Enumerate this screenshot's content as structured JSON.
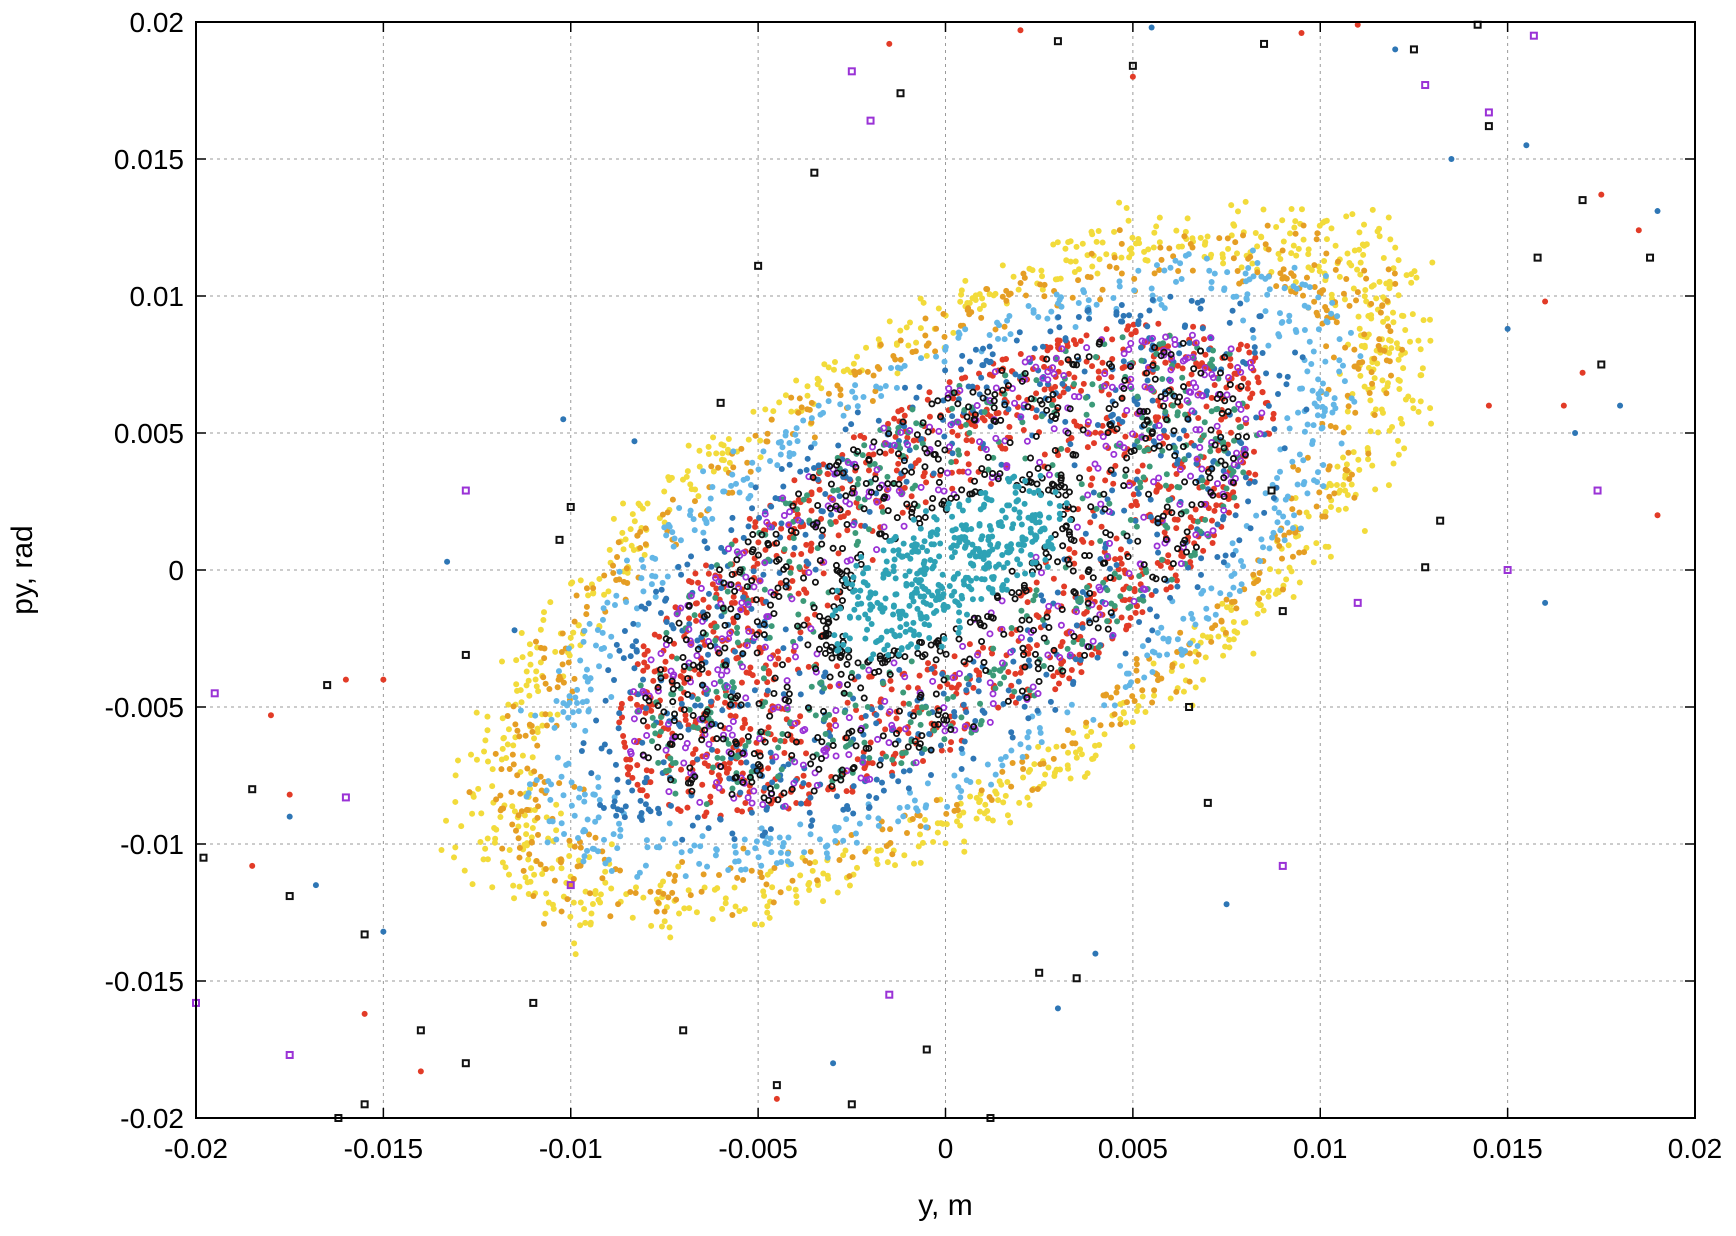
{
  "chart_data": {
    "type": "scatter",
    "title": "",
    "xlabel": "y, m",
    "ylabel": "py, rad",
    "xlim": [
      -0.02,
      0.02
    ],
    "ylim": [
      -0.02,
      0.02
    ],
    "grid": true,
    "legend": "none",
    "x_ticks": [
      "-0.02",
      "-0.015",
      "-0.01",
      "-0.005",
      "0",
      "0.005",
      "0.01",
      "0.015",
      "0.02"
    ],
    "y_ticks": [
      "-0.02",
      "-0.015",
      "-0.01",
      "-0.005",
      "0",
      "0.005",
      "0.01",
      "0.015",
      "0.02"
    ],
    "tilt_slope": 1.05,
    "series": [
      {
        "color": "#f2db3b",
        "marker": "dot",
        "rings": [
          [
            0.0165,
            0.0075
          ],
          [
            0.0155,
            0.0072
          ],
          [
            0.0148,
            0.0069
          ]
        ],
        "count": 900,
        "core": []
      },
      {
        "color": "#e59e24",
        "marker": "dot",
        "rings": [
          [
            0.0152,
            0.007
          ],
          [
            0.014,
            0.0066
          ]
        ],
        "count": 520,
        "core": []
      },
      {
        "color": "#63b6e6",
        "marker": "dot",
        "rings": [
          [
            0.0137,
            0.0064
          ],
          [
            0.0128,
            0.0061
          ]
        ],
        "count": 560,
        "core": []
      },
      {
        "color": "#e23b27",
        "marker": "dot",
        "rings": [],
        "count": 0,
        "core": [
          0.0115,
          0.0052,
          1100
        ]
      },
      {
        "color": "#2e76b5",
        "marker": "dot",
        "rings": [],
        "count": 0,
        "core": [
          0.0128,
          0.0058,
          650
        ]
      },
      {
        "color": "#3c9a78",
        "marker": "dot",
        "rings": [],
        "count": 0,
        "core": [
          0.011,
          0.005,
          450
        ]
      },
      {
        "color": "#9a32d6",
        "marker": "ring",
        "rings": [],
        "count": 0,
        "core": [
          0.0112,
          0.005,
          420
        ]
      },
      {
        "color": "#111111",
        "marker": "ring",
        "rings": [
          [
            0.0042,
            0.002
          ]
        ],
        "count": 160,
        "core": [
          0.0108,
          0.0049,
          520
        ]
      },
      {
        "color": "#2ea2b5",
        "marker": "dot",
        "rings": [
          [
            0.0038,
            0.0017
          ],
          [
            0.003,
            0.0013
          ],
          [
            0.0022,
            0.001
          ],
          [
            0.0013,
            0.0006
          ]
        ],
        "count": 420,
        "core": []
      }
    ],
    "outliers": [
      {
        "color": "#111111",
        "marker": "square",
        "points": [
          [
            -0.0198,
            -0.0105
          ],
          [
            -0.0175,
            -0.0119
          ],
          [
            -0.0155,
            -0.0133
          ],
          [
            -0.0165,
            -0.0042
          ],
          [
            -0.014,
            -0.0168
          ],
          [
            -0.0185,
            -0.008
          ],
          [
            -0.0128,
            -0.0031
          ],
          [
            -0.01,
            0.0023
          ],
          [
            -0.0103,
            0.0011
          ],
          [
            -0.005,
            0.0111
          ],
          [
            -0.0035,
            0.0145
          ],
          [
            -0.006,
            0.0061
          ],
          [
            -0.0012,
            0.0174
          ],
          [
            0.003,
            0.0193
          ],
          [
            0.005,
            0.0184
          ],
          [
            0.0085,
            0.0192
          ],
          [
            0.0125,
            0.019
          ],
          [
            0.0142,
            0.0199
          ],
          [
            0.0145,
            0.0162
          ],
          [
            0.0158,
            0.0114
          ],
          [
            0.0175,
            0.0075
          ],
          [
            0.0188,
            0.0114
          ],
          [
            0.017,
            0.0135
          ],
          [
            0.0128,
            0.0001
          ],
          [
            0.0132,
            0.0018
          ],
          [
            0.009,
            -0.0015
          ],
          [
            0.0087,
            0.0029
          ],
          [
            0.0065,
            -0.005
          ],
          [
            0.007,
            -0.0085
          ],
          [
            0.0035,
            -0.0149
          ],
          [
            0.0025,
            -0.0147
          ],
          [
            0.0012,
            -0.02
          ],
          [
            -0.0005,
            -0.0175
          ],
          [
            -0.0025,
            -0.0195
          ],
          [
            -0.0045,
            -0.0188
          ],
          [
            -0.007,
            -0.0168
          ],
          [
            -0.011,
            -0.0158
          ],
          [
            -0.0155,
            -0.0195
          ],
          [
            -0.0162,
            -0.02
          ],
          [
            -0.0128,
            -0.018
          ]
        ]
      },
      {
        "color": "#9a32d6",
        "marker": "square",
        "points": [
          [
            -0.0195,
            -0.0045
          ],
          [
            -0.02,
            -0.0158
          ],
          [
            -0.0175,
            -0.0177
          ],
          [
            -0.016,
            -0.0083
          ],
          [
            -0.0128,
            0.0029
          ],
          [
            -0.0025,
            0.0182
          ],
          [
            -0.002,
            0.0164
          ],
          [
            0.0128,
            0.0177
          ],
          [
            0.0145,
            0.0167
          ],
          [
            0.0157,
            0.0195
          ],
          [
            0.0174,
            0.0029
          ],
          [
            0.015,
            0.0
          ],
          [
            0.011,
            -0.0012
          ],
          [
            0.009,
            -0.0108
          ],
          [
            -0.01,
            -0.0115
          ],
          [
            -0.0015,
            -0.0155
          ]
        ]
      },
      {
        "color": "#e23b27",
        "marker": "dot",
        "points": [
          [
            -0.0185,
            -0.0108
          ],
          [
            -0.0175,
            -0.0082
          ],
          [
            -0.016,
            -0.004
          ],
          [
            -0.0155,
            -0.0162
          ],
          [
            -0.015,
            -0.004
          ],
          [
            -0.014,
            -0.0183
          ],
          [
            0.0165,
            0.006
          ],
          [
            0.0175,
            0.0137
          ],
          [
            0.0185,
            0.0124
          ],
          [
            0.016,
            0.0098
          ],
          [
            0.017,
            0.0072
          ],
          [
            0.0145,
            0.006
          ],
          [
            0.0095,
            0.0196
          ],
          [
            0.011,
            0.0199
          ],
          [
            0.002,
            0.0197
          ],
          [
            -0.0015,
            0.0192
          ],
          [
            0.005,
            0.018
          ],
          [
            -0.018,
            -0.0053
          ],
          [
            -0.0045,
            -0.0193
          ],
          [
            0.019,
            0.002
          ]
        ]
      },
      {
        "color": "#2e76b5",
        "marker": "dot",
        "points": [
          [
            -0.0175,
            -0.009
          ],
          [
            -0.0168,
            -0.0115
          ],
          [
            -0.015,
            -0.0132
          ],
          [
            -0.0115,
            -0.0022
          ],
          [
            -0.0102,
            0.0055
          ],
          [
            -0.0083,
            0.0047
          ],
          [
            0.018,
            0.006
          ],
          [
            0.019,
            0.0131
          ],
          [
            0.0155,
            0.0155
          ],
          [
            0.015,
            0.0088
          ],
          [
            0.0168,
            0.005
          ],
          [
            0.016,
            -0.0012
          ],
          [
            0.0135,
            0.015
          ],
          [
            0.012,
            0.019
          ],
          [
            0.0055,
            0.0198
          ],
          [
            0.0075,
            -0.0122
          ],
          [
            0.004,
            -0.014
          ],
          [
            -0.003,
            -0.018
          ],
          [
            0.003,
            -0.016
          ],
          [
            -0.0133,
            0.0003
          ]
        ]
      }
    ]
  }
}
